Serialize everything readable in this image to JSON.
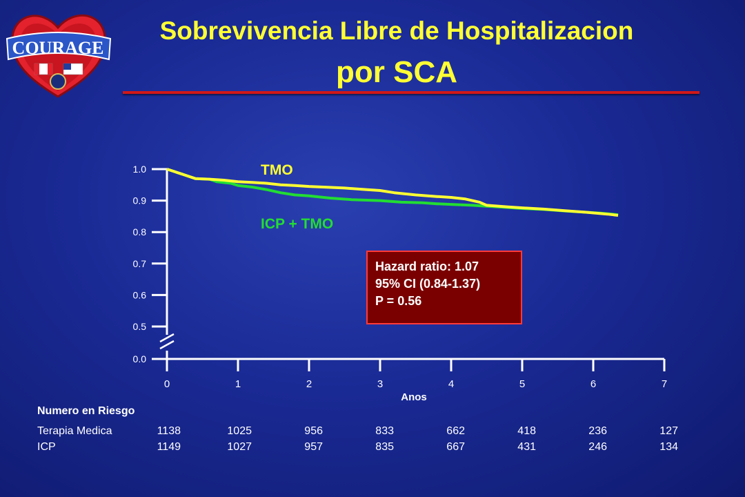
{
  "title": {
    "line1": "Sobrevivencia Libre de Hospitalizacion",
    "line2": "por SCA"
  },
  "logo": {
    "text": "COURAGE"
  },
  "colors": {
    "title": "#ffff33",
    "rule": "#d01818",
    "tmo": "#ffff33",
    "icp": "#22dd33",
    "axis": "#ffffff",
    "hr_box": "#7a0000",
    "hr_border": "#ff3a3a"
  },
  "chart_data": {
    "type": "line",
    "xlabel": "Anos",
    "ylabel": "",
    "xlim": [
      0,
      7
    ],
    "ylim": [
      0.5,
      1.0
    ],
    "axis_break": true,
    "x_ticks": [
      "0",
      "1",
      "2",
      "3",
      "4",
      "5",
      "6",
      "7"
    ],
    "y_ticks": [
      "0.0",
      "0.5",
      "0.6",
      "0.7",
      "0.8",
      "0.9",
      "1.0"
    ],
    "grid": false,
    "series": [
      {
        "name": "TMO",
        "color": "#ffff33",
        "x": [
          0,
          0.2,
          0.4,
          0.6,
          0.8,
          1.0,
          1.2,
          1.4,
          1.6,
          1.8,
          2.0,
          2.2,
          2.5,
          2.8,
          3.0,
          3.2,
          3.5,
          3.8,
          4.0,
          4.2,
          4.4,
          4.5,
          4.8,
          5.0,
          5.3,
          5.6,
          5.9,
          6.2,
          6.35
        ],
        "y": [
          1.0,
          0.985,
          0.97,
          0.968,
          0.965,
          0.96,
          0.958,
          0.955,
          0.95,
          0.948,
          0.945,
          0.943,
          0.94,
          0.935,
          0.932,
          0.925,
          0.918,
          0.913,
          0.91,
          0.905,
          0.895,
          0.885,
          0.88,
          0.877,
          0.873,
          0.868,
          0.863,
          0.857,
          0.853
        ]
      },
      {
        "name": "ICP + TMO",
        "color": "#22dd33",
        "x": [
          0,
          0.2,
          0.4,
          0.6,
          0.7,
          0.9,
          1.0,
          1.2,
          1.4,
          1.6,
          1.8,
          2.0,
          2.3,
          2.6,
          3.0,
          3.3,
          3.6,
          3.8,
          4.0,
          4.3,
          4.5,
          4.8,
          5.0,
          5.3,
          5.6,
          5.9,
          6.1,
          6.35
        ],
        "y": [
          1.0,
          0.985,
          0.97,
          0.968,
          0.96,
          0.955,
          0.948,
          0.943,
          0.935,
          0.925,
          0.918,
          0.915,
          0.908,
          0.903,
          0.9,
          0.895,
          0.893,
          0.89,
          0.888,
          0.885,
          0.882,
          0.878,
          0.875,
          0.872,
          0.867,
          0.863,
          0.86,
          0.855
        ]
      }
    ],
    "annotations": [
      "TMO",
      "ICP + TMO"
    ]
  },
  "hazard": {
    "line1": "Hazard ratio: 1.07",
    "line2": "95% CI (0.84-1.37)",
    "line3": "P = 0.56"
  },
  "risk": {
    "title": "Numero en Riesgo",
    "rows": [
      {
        "label": "Terapia Medica",
        "values": [
          "1138",
          "1025",
          "956",
          "833",
          "662",
          "418",
          "236",
          "127"
        ]
      },
      {
        "label": "ICP",
        "values": [
          "1149",
          "1027",
          "957",
          "835",
          "667",
          "431",
          "246",
          "134"
        ]
      }
    ]
  }
}
